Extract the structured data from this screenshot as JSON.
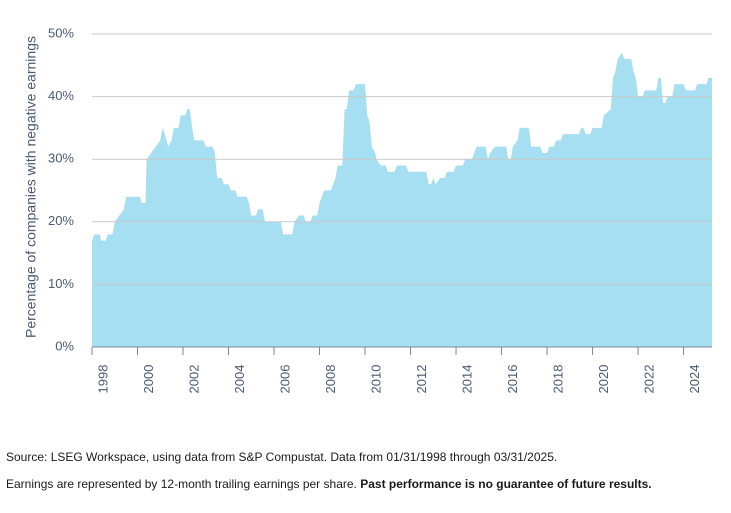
{
  "chart_data": {
    "type": "area",
    "y_label": "Percentage of companies with negative earnings",
    "source": "Source: LSEG Workspace, using data from S&P Compustat. Data from 01/31/1998 through 03/31/2025.",
    "footnote": "Earnings are represented by 12-month trailing earnings per share.",
    "disclaimer": "Past performance is no guarantee of future results.",
    "color": "#a6dff1",
    "grid": true,
    "xlim": [
      1998,
      2025.25
    ],
    "xticks": [
      1998,
      2000,
      2002,
      2004,
      2006,
      2008,
      2010,
      2012,
      2014,
      2016,
      2018,
      2020,
      2022,
      2024
    ],
    "ylim": [
      0,
      50
    ],
    "yticks": [
      {
        "value": 0,
        "label": "0%"
      },
      {
        "value": 10,
        "label": "10%"
      },
      {
        "value": 20,
        "label": "20%"
      },
      {
        "value": 30,
        "label": "30%"
      },
      {
        "value": 40,
        "label": "40%"
      },
      {
        "value": 50,
        "label": "50%"
      }
    ],
    "x": [
      1998.0,
      1998.1,
      1998.35,
      1998.4,
      1998.6,
      1998.7,
      1998.9,
      1999.0,
      1999.2,
      1999.4,
      1999.5,
      2000.1,
      2000.2,
      2000.35,
      2000.4,
      2000.6,
      2000.8,
      2001.0,
      2001.1,
      2001.2,
      2001.35,
      2001.5,
      2001.6,
      2001.8,
      2001.9,
      2002.1,
      2002.2,
      2002.3,
      2002.4,
      2002.5,
      2002.9,
      2003.0,
      2003.3,
      2003.4,
      2003.5,
      2003.7,
      2003.8,
      2004.0,
      2004.1,
      2004.3,
      2004.4,
      2004.8,
      2004.9,
      2005.0,
      2005.2,
      2005.3,
      2005.5,
      2005.6,
      2006.3,
      2006.4,
      2006.8,
      2006.9,
      2007.1,
      2007.3,
      2007.4,
      2007.6,
      2007.7,
      2007.9,
      2008.0,
      2008.2,
      2008.5,
      2008.7,
      2008.8,
      2009.0,
      2009.1,
      2009.2,
      2009.3,
      2009.5,
      2009.6,
      2010.0,
      2010.1,
      2010.2,
      2010.3,
      2010.45,
      2010.5,
      2010.7,
      2010.9,
      2011.0,
      2011.3,
      2011.4,
      2011.8,
      2011.9,
      2012.7,
      2012.8,
      2012.9,
      2013.0,
      2013.1,
      2013.3,
      2013.5,
      2013.6,
      2013.9,
      2014.0,
      2014.3,
      2014.4,
      2014.7,
      2014.8,
      2014.9,
      2015.3,
      2015.4,
      2015.5,
      2015.7,
      2016.2,
      2016.3,
      2016.4,
      2016.5,
      2016.7,
      2016.8,
      2017.2,
      2017.3,
      2017.7,
      2017.8,
      2018.0,
      2018.1,
      2018.3,
      2018.4,
      2018.6,
      2018.7,
      2019.4,
      2019.5,
      2019.6,
      2019.7,
      2019.9,
      2020.0,
      2020.4,
      2020.5,
      2020.8,
      2020.9,
      2021.0,
      2021.1,
      2021.3,
      2021.4,
      2021.7,
      2021.8,
      2021.9,
      2022.0,
      2022.2,
      2022.3,
      2022.8,
      2022.9,
      2023.0,
      2023.1,
      2023.2,
      2023.3,
      2023.5,
      2023.6,
      2024.0,
      2024.1,
      2024.5,
      2024.6,
      2025.0,
      2025.1,
      2025.25
    ],
    "values": [
      17,
      18,
      18,
      17,
      17,
      18,
      18,
      20,
      21,
      22,
      24,
      24,
      23,
      23,
      30,
      31,
      32,
      33,
      35,
      34,
      32,
      33,
      35,
      35,
      37,
      37,
      38,
      38,
      35,
      33,
      33,
      32,
      32,
      31,
      27,
      27,
      26,
      26,
      25,
      25,
      24,
      24,
      23,
      21,
      21,
      22,
      22,
      20,
      20,
      18,
      18,
      20,
      21,
      21,
      20,
      20,
      21,
      21,
      23,
      25,
      25,
      27,
      29,
      29,
      38,
      38,
      41,
      41,
      42,
      42,
      37,
      36,
      32,
      31,
      30,
      29,
      29,
      28,
      28,
      29,
      29,
      28,
      28,
      26,
      26,
      27,
      26,
      27,
      27,
      28,
      28,
      29,
      29,
      30,
      30,
      31,
      32,
      32,
      30,
      31,
      32,
      32,
      30,
      30,
      32,
      33,
      35,
      35,
      32,
      32,
      31,
      31,
      32,
      32,
      33,
      33,
      34,
      34,
      35,
      35,
      34,
      34,
      35,
      35,
      37,
      38,
      43,
      44,
      46,
      47,
      46,
      46,
      44,
      43,
      40,
      40,
      41,
      41,
      43,
      43,
      39,
      39,
      40,
      40,
      42,
      42,
      41,
      41,
      42,
      42,
      43,
      43
    ]
  }
}
